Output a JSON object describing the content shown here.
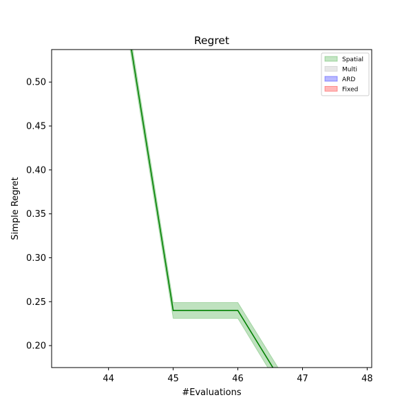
{
  "chart_data": {
    "type": "line",
    "title": "Regret",
    "xlabel": "#Evaluations",
    "ylabel": "Simple Regret",
    "xlim": [
      43.12,
      48.07
    ],
    "ylim": [
      0.175,
      0.537
    ],
    "xticks": [
      44,
      45,
      46,
      47,
      48
    ],
    "yticks": [
      0.2,
      0.25,
      0.3,
      0.35,
      0.4,
      0.45,
      0.5
    ],
    "ytick_labels": [
      "0.20",
      "0.25",
      "0.30",
      "0.35",
      "0.40",
      "0.45",
      "0.50"
    ],
    "grid": false,
    "legend_position": "top-right",
    "series": [
      {
        "name": "Spatial",
        "line_color": "#008000",
        "band_color": "#2ca02c",
        "x": [
          44,
          45,
          46,
          47
        ],
        "y": [
          0.7,
          0.24,
          0.24,
          0.12
        ],
        "y_lower": [
          0.69,
          0.231,
          0.231,
          0.11
        ],
        "y_upper": [
          0.71,
          0.249,
          0.249,
          0.13
        ]
      }
    ],
    "legend": [
      {
        "label": "Spatial",
        "color": "#2ca02c"
      },
      {
        "label": "Multi",
        "color": "#a9a9a9"
      },
      {
        "label": "ARD",
        "color": "#0000ff"
      },
      {
        "label": "Fixed",
        "color": "#ff0000"
      }
    ]
  }
}
